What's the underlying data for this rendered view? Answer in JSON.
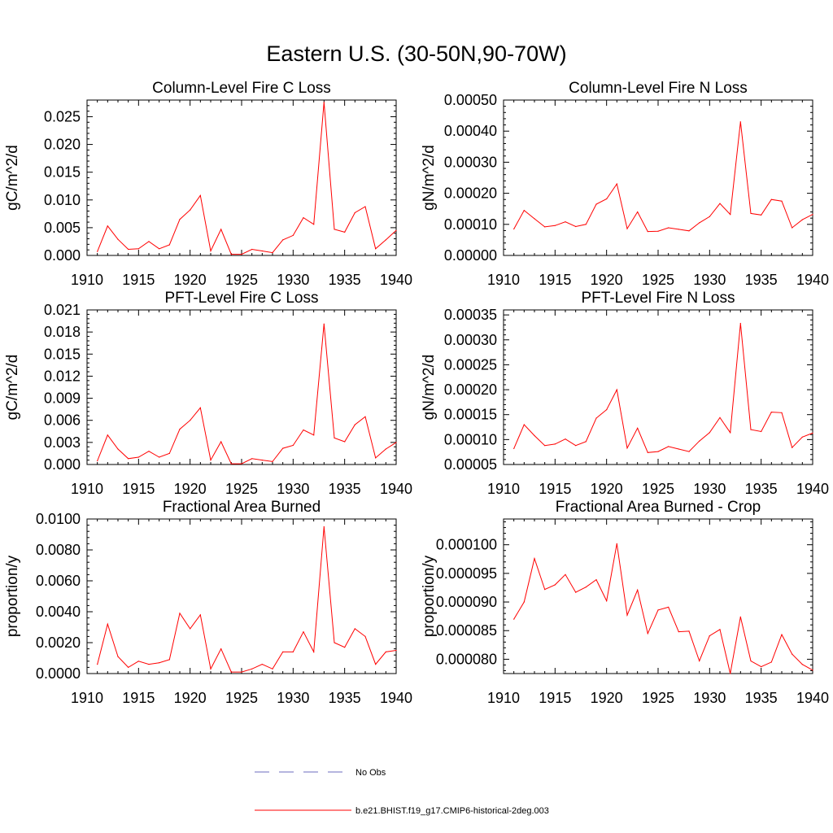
{
  "figure": {
    "title": "Eastern U.S. (30-50N,90-70W)"
  },
  "legend": [
    {
      "label": "No Obs",
      "color": "#6b6bbf",
      "dashed": true
    },
    {
      "label": "b.e21.BHIST.f19_g17.CMIP6-historical-2deg.003",
      "color": "#ff0000",
      "dashed": false
    }
  ],
  "chart_data": [
    {
      "type": "line",
      "title": "Column-Level Fire C Loss",
      "ylabel": "gC/m^2/d",
      "xlim": [
        1910,
        1940
      ],
      "ylim": [
        0,
        0.028
      ],
      "xticks": [
        1910,
        1915,
        1920,
        1925,
        1930,
        1935,
        1940
      ],
      "xtick_labels": [
        "1910",
        "1915",
        "1920",
        "1925",
        "1930",
        "1935",
        "1940"
      ],
      "yticks": [
        0,
        0.005,
        0.01,
        0.015,
        0.02,
        0.025
      ],
      "ytick_labels": [
        "0.000",
        "0.005",
        "0.010",
        "0.015",
        "0.020",
        "0.025"
      ],
      "series": [
        {
          "color": "#ff0000",
          "x": [
            1911,
            1912,
            1913,
            1914,
            1915,
            1916,
            1917,
            1918,
            1919,
            1920,
            1921,
            1922,
            1923,
            1924,
            1925,
            1926,
            1927,
            1928,
            1929,
            1930,
            1931,
            1932,
            1933,
            1934,
            1935,
            1936,
            1937,
            1938,
            1939,
            1940
          ],
          "y": [
            0.0007,
            0.0053,
            0.0029,
            0.0011,
            0.0012,
            0.0025,
            0.0012,
            0.0019,
            0.0065,
            0.0082,
            0.0108,
            0.0008,
            0.0047,
            0.0002,
            0.0002,
            0.0011,
            0.0008,
            0.0005,
            0.0028,
            0.0036,
            0.0068,
            0.0056,
            0.0276,
            0.0047,
            0.0042,
            0.0077,
            0.0088,
            0.0012,
            0.0028,
            0.0045
          ]
        }
      ]
    },
    {
      "type": "line",
      "title": "Column-Level Fire N Loss",
      "ylabel": "gN/m^2/d",
      "xlim": [
        1910,
        1940
      ],
      "ylim": [
        0,
        0.0005
      ],
      "xticks": [
        1910,
        1915,
        1920,
        1925,
        1930,
        1935,
        1940
      ],
      "xtick_labels": [
        "1910",
        "1915",
        "1920",
        "1925",
        "1930",
        "1935",
        "1940"
      ],
      "yticks": [
        0,
        0.0001,
        0.0002,
        0.0003,
        0.0004,
        0.0005
      ],
      "ytick_labels": [
        "0.00000",
        "0.00010",
        "0.00020",
        "0.00030",
        "0.00040",
        "0.00050"
      ],
      "series": [
        {
          "color": "#ff0000",
          "x": [
            1911,
            1912,
            1913,
            1914,
            1915,
            1916,
            1917,
            1918,
            1919,
            1920,
            1921,
            1922,
            1923,
            1924,
            1925,
            1926,
            1927,
            1928,
            1929,
            1930,
            1931,
            1932,
            1933,
            1934,
            1935,
            1936,
            1937,
            1938,
            1939,
            1940
          ],
          "y": [
            8.5e-05,
            0.000145,
            0.000118,
            9.2e-05,
            9.6e-05,
            0.000108,
            9.3e-05,
            0.0001,
            0.000165,
            0.000182,
            0.00023,
            8.6e-05,
            0.00014,
            7.7e-05,
            7.8e-05,
            8.9e-05,
            8.4e-05,
            7.9e-05,
            0.000105,
            0.000125,
            0.000167,
            0.000132,
            0.00043,
            0.000135,
            0.00013,
            0.00018,
            0.000175,
            8.9e-05,
            0.000115,
            0.000132
          ]
        }
      ]
    },
    {
      "type": "line",
      "title": "PFT-Level Fire C Loss",
      "ylabel": "gC/m^2/d",
      "xlim": [
        1910,
        1940
      ],
      "ylim": [
        0,
        0.021
      ],
      "xticks": [
        1910,
        1915,
        1920,
        1925,
        1930,
        1935,
        1940
      ],
      "xtick_labels": [
        "1910",
        "1915",
        "1920",
        "1925",
        "1930",
        "1935",
        "1940"
      ],
      "yticks": [
        0,
        0.003,
        0.006,
        0.009,
        0.012,
        0.015,
        0.018,
        0.021
      ],
      "ytick_labels": [
        "0.000",
        "0.003",
        "0.006",
        "0.009",
        "0.012",
        "0.015",
        "0.018",
        "0.021"
      ],
      "series": [
        {
          "color": "#ff0000",
          "x": [
            1911,
            1912,
            1913,
            1914,
            1915,
            1916,
            1917,
            1918,
            1919,
            1920,
            1921,
            1922,
            1923,
            1924,
            1925,
            1926,
            1927,
            1928,
            1929,
            1930,
            1931,
            1932,
            1933,
            1934,
            1935,
            1936,
            1937,
            1938,
            1939,
            1940
          ],
          "y": [
            0.0005,
            0.004,
            0.0021,
            0.0008,
            0.001,
            0.0018,
            0.001,
            0.0015,
            0.0048,
            0.006,
            0.0077,
            0.0006,
            0.0031,
            0.0001,
            0.0001,
            0.0008,
            0.0006,
            0.0004,
            0.0022,
            0.0026,
            0.0047,
            0.004,
            0.0191,
            0.0036,
            0.0031,
            0.0054,
            0.0065,
            0.0009,
            0.0021,
            0.003
          ]
        }
      ]
    },
    {
      "type": "line",
      "title": "PFT-Level Fire N Loss",
      "ylabel": "gN/m^2/d",
      "xlim": [
        1910,
        1940
      ],
      "ylim": [
        5e-05,
        0.00036
      ],
      "xticks": [
        1910,
        1915,
        1920,
        1925,
        1930,
        1935,
        1940
      ],
      "xtick_labels": [
        "1910",
        "1915",
        "1920",
        "1925",
        "1930",
        "1935",
        "1940"
      ],
      "yticks": [
        5e-05,
        0.0001,
        0.00015,
        0.0002,
        0.00025,
        0.0003,
        0.00035
      ],
      "ytick_labels": [
        "0.00005",
        "0.00010",
        "0.00015",
        "0.00020",
        "0.00025",
        "0.00030",
        "0.00035"
      ],
      "series": [
        {
          "color": "#ff0000",
          "x": [
            1911,
            1912,
            1913,
            1914,
            1915,
            1916,
            1917,
            1918,
            1919,
            1920,
            1921,
            1922,
            1923,
            1924,
            1925,
            1926,
            1927,
            1928,
            1929,
            1930,
            1931,
            1932,
            1933,
            1934,
            1935,
            1936,
            1937,
            1938,
            1939,
            1940
          ],
          "y": [
            8.2e-05,
            0.00013,
            0.000108,
            8.8e-05,
            9.1e-05,
            0.000101,
            8.8e-05,
            9.6e-05,
            0.000143,
            0.00016,
            0.0002,
            8.3e-05,
            0.000123,
            7.4e-05,
            7.6e-05,
            8.6e-05,
            8.1e-05,
            7.6e-05,
            9.7e-05,
            0.000114,
            0.000144,
            0.000114,
            0.000333,
            0.00012,
            0.000116,
            0.000155,
            0.000154,
            8.4e-05,
            0.000105,
            0.000113
          ]
        }
      ]
    },
    {
      "type": "line",
      "title": "Fractional Area Burned",
      "ylabel": "proportion/y",
      "xlim": [
        1910,
        1940
      ],
      "ylim": [
        0,
        0.01
      ],
      "xticks": [
        1910,
        1915,
        1920,
        1925,
        1930,
        1935,
        1940
      ],
      "xtick_labels": [
        "1910",
        "1915",
        "1920",
        "1925",
        "1930",
        "1935",
        "1940"
      ],
      "yticks": [
        0,
        0.002,
        0.004,
        0.006,
        0.008,
        0.01
      ],
      "ytick_labels": [
        "0.0000",
        "0.0020",
        "0.0040",
        "0.0060",
        "0.0080",
        "0.0100"
      ],
      "series": [
        {
          "color": "#ff0000",
          "x": [
            1911,
            1912,
            1913,
            1914,
            1915,
            1916,
            1917,
            1918,
            1919,
            1920,
            1921,
            1922,
            1923,
            1924,
            1925,
            1926,
            1927,
            1928,
            1929,
            1930,
            1931,
            1932,
            1933,
            1934,
            1935,
            1936,
            1937,
            1938,
            1939,
            1940
          ],
          "y": [
            0.0006,
            0.0032,
            0.0011,
            0.0004,
            0.0008,
            0.0006,
            0.0007,
            0.0009,
            0.0039,
            0.0029,
            0.0038,
            0.0003,
            0.0016,
            0.0001,
            0.0001,
            0.0003,
            0.0006,
            0.0003,
            0.0014,
            0.0014,
            0.0027,
            0.0014,
            0.0095,
            0.002,
            0.0017,
            0.0029,
            0.0024,
            0.0006,
            0.0014,
            0.0015
          ]
        }
      ]
    },
    {
      "type": "line",
      "title": "Fractional Area Burned - Crop",
      "ylabel": "proportion/y",
      "xlim": [
        1910,
        1940
      ],
      "ylim": [
        7.75e-05,
        0.0001045
      ],
      "xticks": [
        1910,
        1915,
        1920,
        1925,
        1930,
        1935,
        1940
      ],
      "xtick_labels": [
        "1910",
        "1915",
        "1920",
        "1925",
        "1930",
        "1935",
        "1940"
      ],
      "yticks": [
        8e-05,
        8.5e-05,
        9e-05,
        9.5e-05,
        0.0001
      ],
      "ytick_labels": [
        "0.000080",
        "0.000085",
        "0.000090",
        "0.000095",
        "0.000100"
      ],
      "series": [
        {
          "color": "#ff0000",
          "x": [
            1911,
            1912,
            1913,
            1914,
            1915,
            1916,
            1917,
            1918,
            1919,
            1920,
            1921,
            1922,
            1923,
            1924,
            1925,
            1926,
            1927,
            1928,
            1929,
            1930,
            1931,
            1932,
            1933,
            1934,
            1935,
            1936,
            1937,
            1938,
            1939,
            1940
          ],
          "y": [
            8.7e-05,
            9e-05,
            9.76e-05,
            9.22e-05,
            9.3e-05,
            9.48e-05,
            9.17e-05,
            9.26e-05,
            9.39e-05,
            9.02e-05,
            0.0001002,
            8.77e-05,
            9.21e-05,
            8.45e-05,
            8.86e-05,
            8.91e-05,
            8.48e-05,
            8.49e-05,
            7.97e-05,
            8.41e-05,
            8.52e-05,
            7.75e-05,
            8.74e-05,
            7.97e-05,
            7.87e-05,
            7.95e-05,
            8.43e-05,
            8.09e-05,
            7.91e-05,
            7.81e-05
          ]
        }
      ]
    }
  ]
}
